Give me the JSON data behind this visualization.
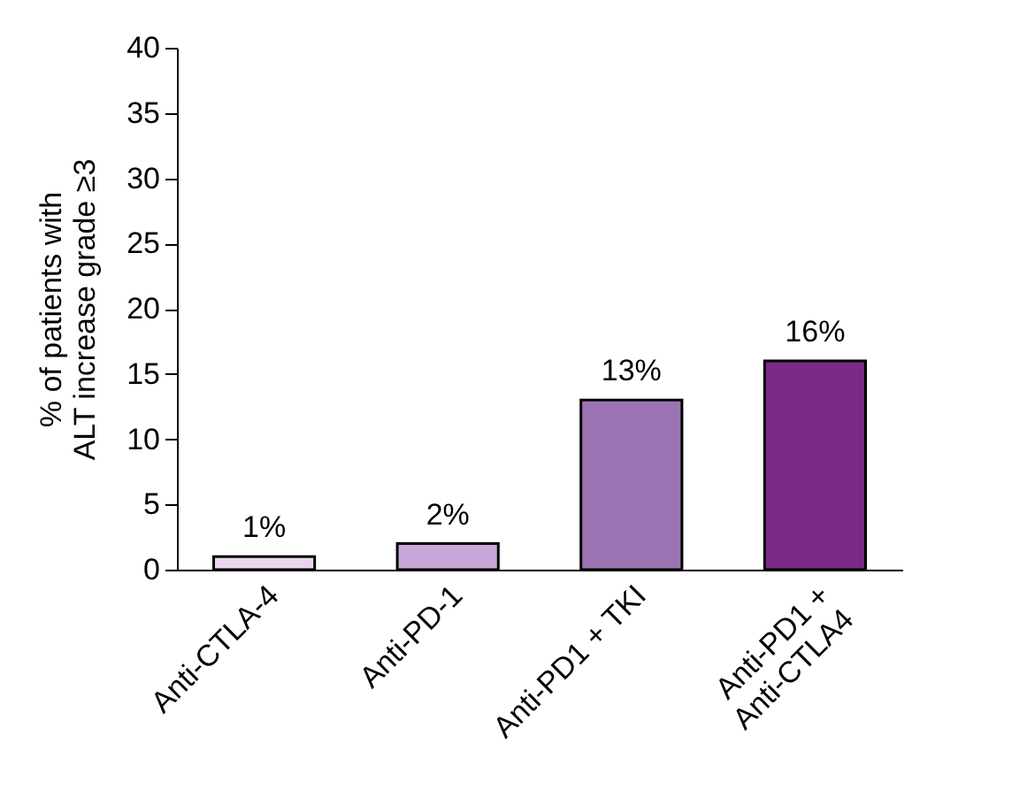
{
  "chart_data": {
    "type": "bar",
    "ylabel": "% of patients with\nALT increase grade ≥3",
    "categories": [
      "Anti-CTLA-4",
      "Anti-PD-1",
      "Anti-PD1 + TKI",
      "Anti-PD1 +\nAnti-CTLA4"
    ],
    "values": [
      1,
      2,
      13,
      16
    ],
    "colors": [
      "#ead6ec",
      "#c9a7d8",
      "#9c74b4",
      "#7a2a87"
    ],
    "value_labels": [
      "1%",
      "2%",
      "13%",
      "16%"
    ],
    "ylim": [
      0,
      40
    ],
    "yticks": [
      0,
      5,
      10,
      15,
      20,
      25,
      30,
      35,
      40
    ],
    "grid": false
  }
}
